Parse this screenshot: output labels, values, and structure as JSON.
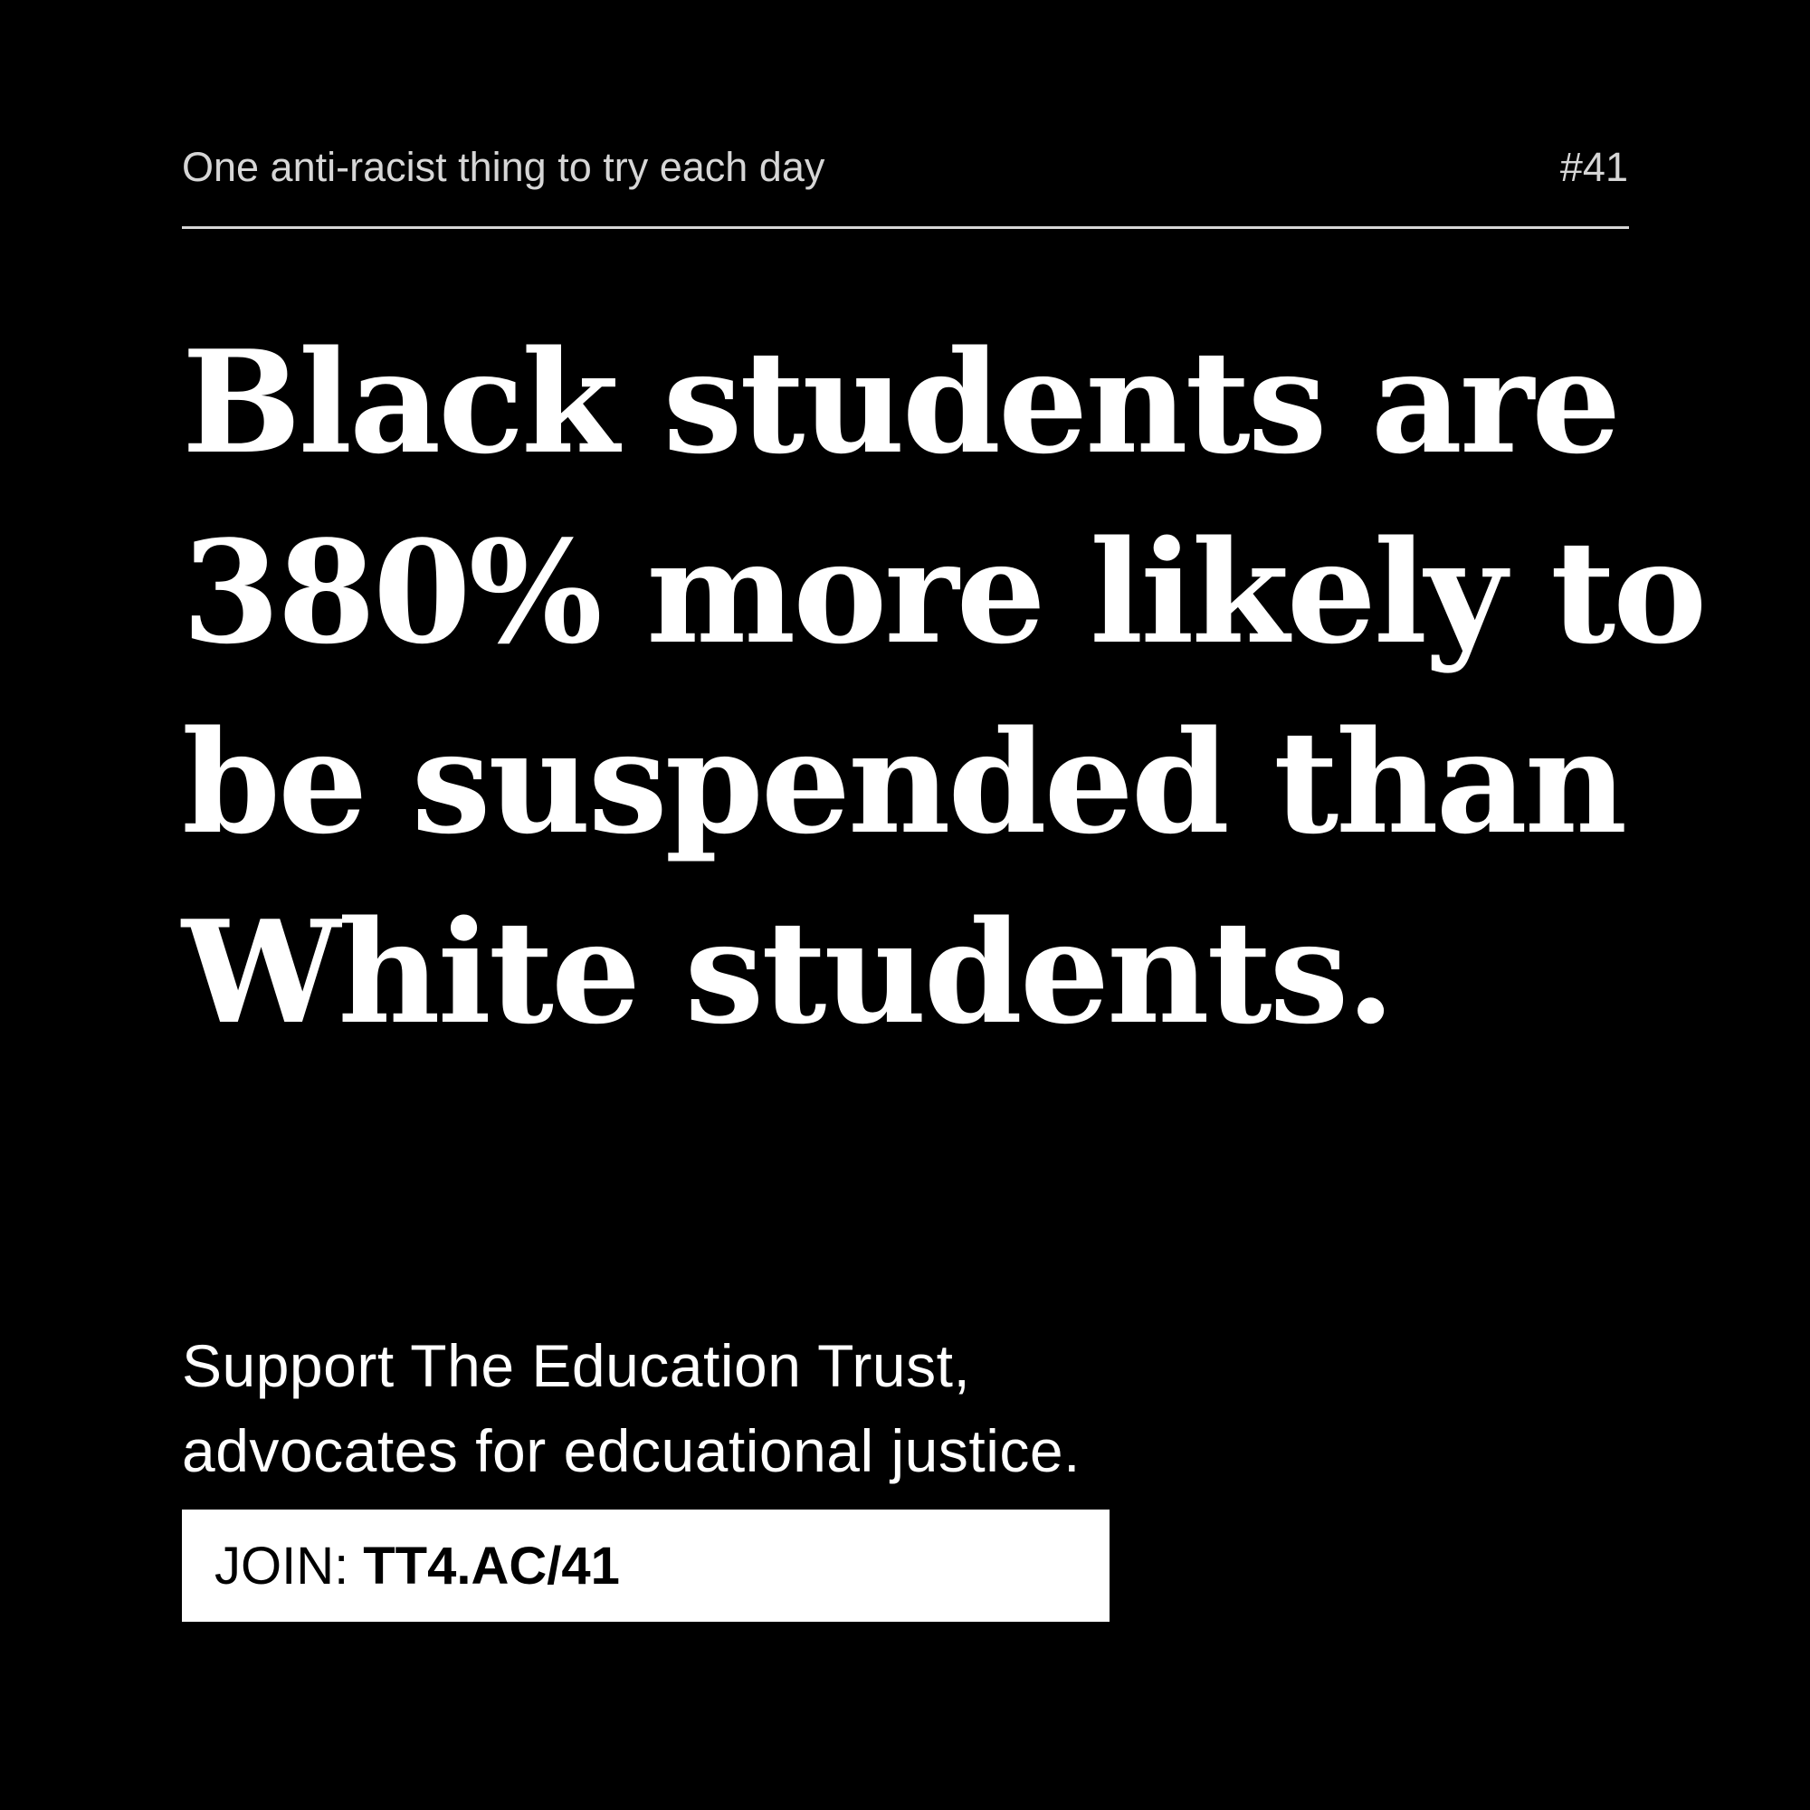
{
  "header": {
    "series_label": "One anti-racist thing to try each day",
    "issue_number": "#41"
  },
  "headline": {
    "lines": [
      "Black students are",
      "380% more likely to",
      "be suspended than",
      "White students."
    ]
  },
  "support": {
    "lines": [
      "Support The Education Trust,",
      "advocates for edcuational justice."
    ]
  },
  "join": {
    "prefix": "JOIN:",
    "link": "TT4.AC/41"
  },
  "colors": {
    "background": "#000000",
    "text": "#ffffff",
    "muted_text": "#d6d6d6",
    "join_box": "#ffffff",
    "join_text": "#000000"
  }
}
